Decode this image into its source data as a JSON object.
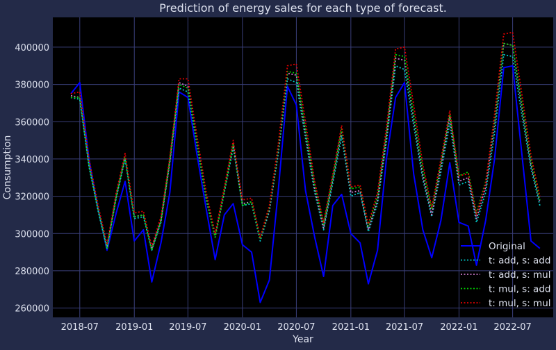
{
  "colors": {
    "figure_bg": "#232a48",
    "plot_bg": "#000000",
    "grid": "#3a3f7a",
    "text": "#dde1ee",
    "original": "#0000ff",
    "add_add": "#00c8c8",
    "add_mul": "#c878c8",
    "mul_add": "#00d000",
    "mul_mul": "#e00000"
  },
  "chart_data": {
    "type": "line",
    "title": "Prediction of energy sales for each type of forecast.",
    "xlabel": "Year",
    "ylabel": "Consumption",
    "xlim": [
      "2018-04-01",
      "2022-11-15"
    ],
    "ylim": [
      255000,
      416000
    ],
    "grid": true,
    "legend_position": "lower-right",
    "x_ticks": [
      "2018-07",
      "2019-01",
      "2019-07",
      "2020-01",
      "2020-07",
      "2021-01",
      "2021-07",
      "2022-01",
      "2022-07"
    ],
    "y_ticks": [
      260000,
      280000,
      300000,
      320000,
      340000,
      360000,
      380000,
      400000
    ],
    "x": [
      "2018-06",
      "2018-07",
      "2018-08",
      "2018-09",
      "2018-10",
      "2018-11",
      "2018-12",
      "2019-01",
      "2019-02",
      "2019-03",
      "2019-04",
      "2019-05",
      "2019-06",
      "2019-07",
      "2019-08",
      "2019-09",
      "2019-10",
      "2019-11",
      "2019-12",
      "2020-01",
      "2020-02",
      "2020-03",
      "2020-04",
      "2020-05",
      "2020-06",
      "2020-07",
      "2020-08",
      "2020-09",
      "2020-10",
      "2020-11",
      "2020-12",
      "2021-01",
      "2021-02",
      "2021-03",
      "2021-04",
      "2021-05",
      "2021-06",
      "2021-07",
      "2021-08",
      "2021-09",
      "2021-10",
      "2021-11",
      "2021-12",
      "2022-01",
      "2022-02",
      "2022-03",
      "2022-04",
      "2022-05",
      "2022-06",
      "2022-07",
      "2022-08",
      "2022-09",
      "2022-10"
    ],
    "series": [
      {
        "name": "Original",
        "color_key": "original",
        "style": "solid",
        "values": [
          375000,
          381000,
          340000,
          313000,
          291000,
          311000,
          328000,
          296000,
          302000,
          274000,
          295000,
          322000,
          376000,
          373000,
          342000,
          313000,
          286000,
          310000,
          316000,
          294000,
          290000,
          263000,
          275000,
          323000,
          379000,
          369000,
          323000,
          298000,
          277000,
          315000,
          321000,
          300000,
          295000,
          273000,
          291000,
          340000,
          373000,
          381000,
          332000,
          302000,
          287000,
          307000,
          338000,
          306000,
          304000,
          283000,
          307000,
          340000,
          389000,
          390000,
          343000,
          296000,
          292000
        ]
      },
      {
        "name": "t: add, s: add",
        "color_key": "add_add",
        "style": "dotted",
        "values": [
          373000,
          372000,
          336000,
          312000,
          292000,
          319000,
          340000,
          308000,
          309000,
          291000,
          306000,
          338000,
          378000,
          376000,
          347000,
          318000,
          298000,
          322000,
          346000,
          315000,
          316000,
          296000,
          312000,
          343000,
          383000,
          381000,
          351000,
          322000,
          302000,
          327000,
          352000,
          320000,
          322000,
          301000,
          316000,
          349000,
          390000,
          388000,
          358000,
          329000,
          309000,
          333000,
          359000,
          326000,
          328000,
          306000,
          322000,
          354000,
          396000,
          395000,
          364000,
          335000,
          315000
        ]
      },
      {
        "name": "t: add, s: mul",
        "color_key": "add_mul",
        "style": "dotted",
        "values": [
          374000,
          373000,
          337000,
          313000,
          293000,
          320000,
          341000,
          309000,
          310000,
          292000,
          307000,
          339000,
          381000,
          379000,
          349000,
          320000,
          299000,
          323000,
          348000,
          316000,
          317000,
          297000,
          313000,
          345000,
          386000,
          385000,
          354000,
          324000,
          303000,
          329000,
          355000,
          322000,
          323000,
          302000,
          318000,
          352000,
          394000,
          393000,
          362000,
          331000,
          310000,
          336000,
          363000,
          328000,
          330000,
          308000,
          325000,
          359000,
          402000,
          401000,
          368000,
          337000,
          317000
        ]
      },
      {
        "name": "t: mul, s: add",
        "color_key": "mul_add",
        "style": "dotted",
        "values": [
          373000,
          373000,
          337000,
          313000,
          292000,
          320000,
          341000,
          309000,
          310000,
          291000,
          307000,
          340000,
          380000,
          378000,
          348000,
          319000,
          298000,
          323000,
          348000,
          315000,
          317000,
          297000,
          314000,
          346000,
          387000,
          386000,
          356000,
          326000,
          305000,
          330000,
          356000,
          324000,
          325000,
          304000,
          320000,
          354000,
          396000,
          395000,
          364000,
          334000,
          313000,
          338000,
          364000,
          331000,
          333000,
          311000,
          328000,
          361000,
          402000,
          401000,
          370000,
          339000,
          318000
        ]
      },
      {
        "name": "t: mul, s: mul",
        "color_key": "mul_mul",
        "style": "dotted",
        "values": [
          375000,
          376000,
          340000,
          315000,
          294000,
          322000,
          343000,
          311000,
          312000,
          293000,
          309000,
          341000,
          383000,
          383000,
          352000,
          322000,
          300000,
          325000,
          350000,
          318000,
          319000,
          298000,
          315000,
          348000,
          390000,
          391000,
          360000,
          328000,
          306000,
          332000,
          358000,
          325000,
          326000,
          305000,
          322000,
          357000,
          399000,
          400000,
          369000,
          337000,
          314000,
          340000,
          366000,
          331000,
          332000,
          310000,
          327000,
          364000,
          407000,
          408000,
          375000,
          342000,
          320000
        ]
      }
    ]
  }
}
